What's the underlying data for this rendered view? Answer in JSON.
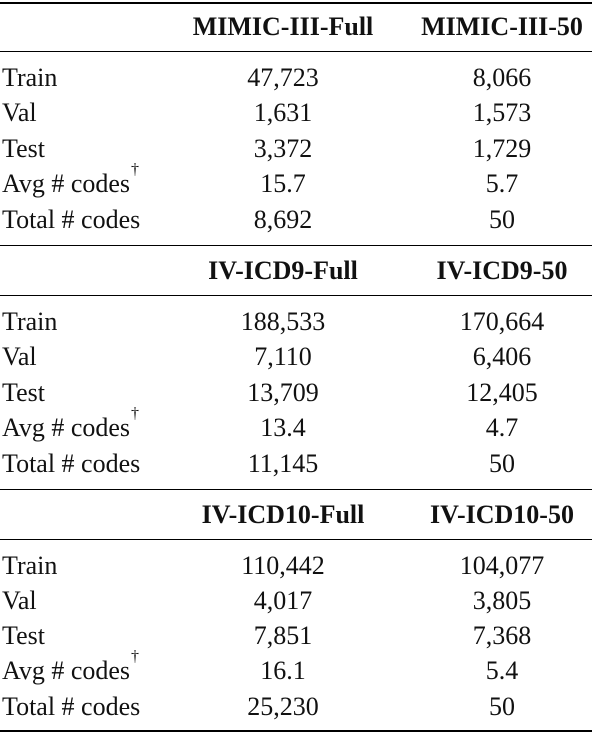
{
  "sections": [
    {
      "header": {
        "full": "MIMIC-III-Full",
        "fifty": "MIMIC-III-50"
      },
      "rows": [
        {
          "label": "Train",
          "full": "47,723",
          "fifty": "8,066"
        },
        {
          "label": "Val",
          "full": "1,631",
          "fifty": "1,573"
        },
        {
          "label": "Test",
          "full": "3,372",
          "fifty": "1,729"
        },
        {
          "label": "Avg # codes",
          "dagger": "†",
          "full": "15.7",
          "fifty": "5.7"
        },
        {
          "label": "Total # codes",
          "full": "8,692",
          "fifty": "50"
        }
      ]
    },
    {
      "header": {
        "full": "IV-ICD9-Full",
        "fifty": "IV-ICD9-50"
      },
      "rows": [
        {
          "label": "Train",
          "full": "188,533",
          "fifty": "170,664"
        },
        {
          "label": "Val",
          "full": "7,110",
          "fifty": "6,406"
        },
        {
          "label": "Test",
          "full": "13,709",
          "fifty": "12,405"
        },
        {
          "label": "Avg # codes",
          "dagger": "†",
          "full": "13.4",
          "fifty": "4.7"
        },
        {
          "label": "Total # codes",
          "full": "11,145",
          "fifty": "50"
        }
      ]
    },
    {
      "header": {
        "full": "IV-ICD10-Full",
        "fifty": "IV-ICD10-50"
      },
      "rows": [
        {
          "label": "Train",
          "full": "110,442",
          "fifty": "104,077"
        },
        {
          "label": "Val",
          "full": "4,017",
          "fifty": "3,805"
        },
        {
          "label": "Test",
          "full": "7,851",
          "fifty": "7,368"
        },
        {
          "label": "Avg # codes",
          "dagger": "†",
          "full": "16.1",
          "fifty": "5.4"
        },
        {
          "label": "Total # codes",
          "full": "25,230",
          "fifty": "50"
        }
      ]
    }
  ]
}
